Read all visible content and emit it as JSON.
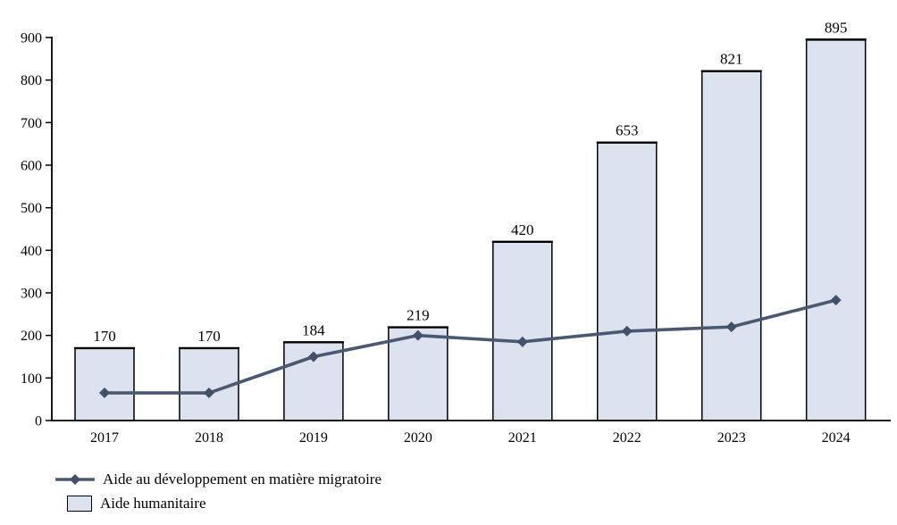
{
  "chart_data": {
    "type": "bar",
    "subtype": "bar-line-combo",
    "title": "",
    "xlabel": "",
    "ylabel": "",
    "categories": [
      "2017",
      "2018",
      "2019",
      "2020",
      "2021",
      "2022",
      "2023",
      "2024"
    ],
    "series": [
      {
        "name": "Aide au développement en matière migratoire",
        "type": "line",
        "marker": "diamond",
        "color": "#4a5870",
        "values": [
          65,
          65,
          150,
          200,
          185,
          210,
          220,
          283
        ]
      },
      {
        "name": "Aide humanitaire",
        "type": "bar",
        "fill": "#dce2ee",
        "border": "#000000",
        "values": [
          170,
          170,
          184,
          219,
          420,
          653,
          821,
          895
        ],
        "bar_labels": [
          "170",
          "170",
          "184",
          "219",
          "420",
          "653",
          "821",
          "895"
        ]
      }
    ],
    "ylim": [
      0,
      900
    ],
    "ytick_step": 100,
    "yticks": [
      "0",
      "100",
      "200",
      "300",
      "400",
      "500",
      "600",
      "700",
      "800",
      "900"
    ],
    "grid": false,
    "legend_position": "bottom-left"
  },
  "legend": {
    "items": [
      {
        "label": "Aide au développement en matière migratoire",
        "swatch": "line-diamond-marker"
      },
      {
        "label": "Aide humanitaire",
        "swatch": "bar-swatch"
      }
    ]
  },
  "colors": {
    "line": "#4a5870",
    "marker": "#42506a",
    "bar_fill": "#dce2ee",
    "bar_border": "#000000",
    "axis": "#000000",
    "background": "#ffffff"
  }
}
